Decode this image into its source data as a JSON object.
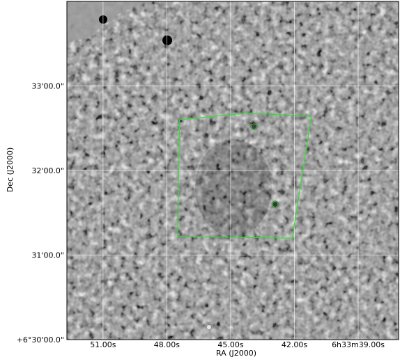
{
  "chart_data": {
    "type": "image",
    "xlabel": "RA (J2000)",
    "ylabel": "Dec (J2000)",
    "x_ticks": [
      {
        "label": "51.00s",
        "ra_s": 51
      },
      {
        "label": "48.00s",
        "ra_s": 48
      },
      {
        "label": "45.00s",
        "ra_s": 45
      },
      {
        "label": "42.00s",
        "ra_s": 42
      },
      {
        "label": "6h33m39.00s",
        "ra_s": 39
      }
    ],
    "y_ticks": [
      {
        "label": "+6°30'00.0\"",
        "dec_arcmin": 30
      },
      {
        "label": "31'00.0\"",
        "dec_arcmin": 31
      },
      {
        "label": "32'00.0\"",
        "dec_arcmin": 32
      },
      {
        "label": "33'00.0\"",
        "dec_arcmin": 33
      }
    ],
    "xlim": [
      52.7,
      37.1
    ],
    "ylim": [
      30.0,
      34.0
    ],
    "grid": true,
    "region_polygon": [
      {
        "ra_s": 47.4,
        "dec_arcmin": 32.6
      },
      {
        "ra_s": 44.2,
        "dec_arcmin": 32.68
      },
      {
        "ra_s": 41.2,
        "dec_arcmin": 32.64
      },
      {
        "ra_s": 42.1,
        "dec_arcmin": 31.2
      },
      {
        "ra_s": 47.5,
        "dec_arcmin": 31.22
      }
    ],
    "region_circles": [
      {
        "ra_s": 43.9,
        "dec_arcmin": 32.52
      },
      {
        "ra_s": 42.9,
        "dec_arcmin": 31.6
      }
    ],
    "region_color": "#33dd33",
    "colormap": "grayscale"
  }
}
